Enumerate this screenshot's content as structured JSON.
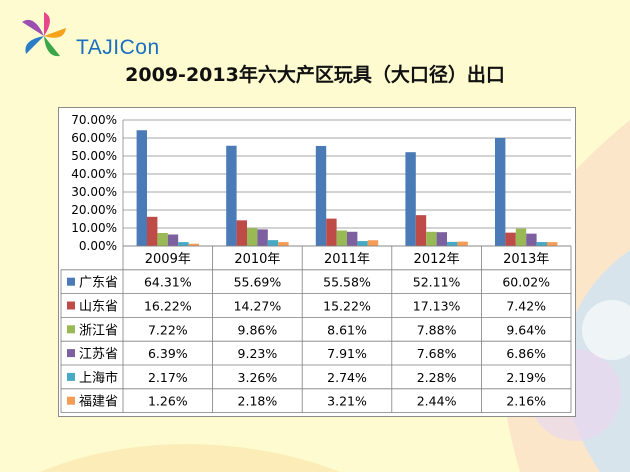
{
  "logo": {
    "text": "TAJICon"
  },
  "chart_data": {
    "type": "bar",
    "title": "2009-2013年六大产区玩具（大口径）出口",
    "categories": [
      "2009年",
      "2010年",
      "2011年",
      "2012年",
      "2013年"
    ],
    "ylim": [
      0,
      70
    ],
    "y_ticks": [
      "0.00%",
      "10.00%",
      "20.00%",
      "30.00%",
      "40.00%",
      "50.00%",
      "60.00%",
      "70.00%"
    ],
    "grid": true,
    "legend": "data-table",
    "series": [
      {
        "name": "广东省",
        "color": "#4a7bb7",
        "values": [
          64.31,
          55.69,
          55.58,
          52.11,
          60.02
        ],
        "labels": [
          "64.31%",
          "55.69%",
          "55.58%",
          "52.11%",
          "60.02%"
        ]
      },
      {
        "name": "山东省",
        "color": "#be4b48",
        "values": [
          16.22,
          14.27,
          15.22,
          17.13,
          7.42
        ],
        "labels": [
          "16.22%",
          "14.27%",
          "15.22%",
          "17.13%",
          "7.42%"
        ]
      },
      {
        "name": "浙江省",
        "color": "#98b954",
        "values": [
          7.22,
          9.86,
          8.61,
          7.88,
          9.64
        ],
        "labels": [
          "7.22%",
          "9.86%",
          "8.61%",
          "7.88%",
          "9.64%"
        ]
      },
      {
        "name": "江苏省",
        "color": "#7d60a0",
        "values": [
          6.39,
          9.23,
          7.91,
          7.68,
          6.86
        ],
        "labels": [
          "6.39%",
          "9.23%",
          "7.91%",
          "7.68%",
          "6.86%"
        ]
      },
      {
        "name": "上海市",
        "color": "#46aac5",
        "values": [
          2.17,
          3.26,
          2.74,
          2.28,
          2.19
        ],
        "labels": [
          "2.17%",
          "3.26%",
          "2.74%",
          "2.28%",
          "2.19%"
        ]
      },
      {
        "name": "福建省",
        "color": "#f59d56",
        "values": [
          1.26,
          2.18,
          3.21,
          2.44,
          2.16
        ],
        "labels": [
          "1.26%",
          "2.18%",
          "3.21%",
          "2.44%",
          "2.16%"
        ]
      }
    ]
  }
}
